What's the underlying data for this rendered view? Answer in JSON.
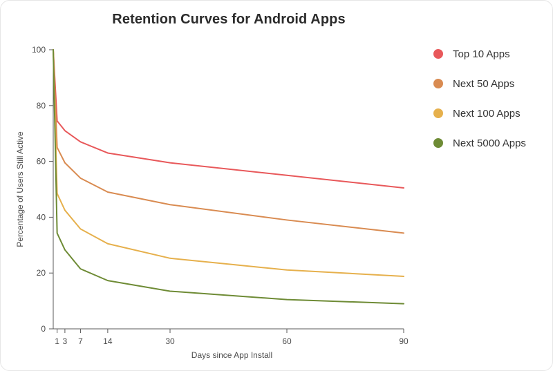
{
  "chart_data": {
    "type": "line",
    "title": "Retention Curves for Android Apps",
    "xlabel": "Days since App Install",
    "ylabel": "Percentage of Users Still Active",
    "x": [
      0,
      1,
      3,
      7,
      14,
      30,
      60,
      90
    ],
    "x_ticks": [
      1,
      3,
      7,
      14,
      30,
      60,
      90
    ],
    "y_ticks": [
      0,
      20,
      40,
      60,
      80,
      100
    ],
    "xlim": [
      0,
      90
    ],
    "ylim": [
      0,
      100
    ],
    "grid": false,
    "legend_position": "right",
    "series": [
      {
        "name": "Top 10 Apps",
        "color": "#e8585a",
        "values": [
          100,
          74.5,
          71,
          67,
          63,
          59.5,
          55,
          50.5
        ]
      },
      {
        "name": "Next 50 Apps",
        "color": "#d98b51",
        "values": [
          100,
          65,
          59.5,
          54,
          49,
          44.5,
          39,
          34.3
        ]
      },
      {
        "name": "Next 100 Apps",
        "color": "#e6b04c",
        "values": [
          100,
          48.5,
          42.5,
          35.8,
          30.5,
          25.3,
          21.1,
          18.8
        ]
      },
      {
        "name": "Next 5000 Apps",
        "color": "#6e8b35",
        "values": [
          100,
          34.3,
          28.3,
          21.5,
          17.3,
          13.5,
          10.5,
          9
        ]
      }
    ]
  }
}
